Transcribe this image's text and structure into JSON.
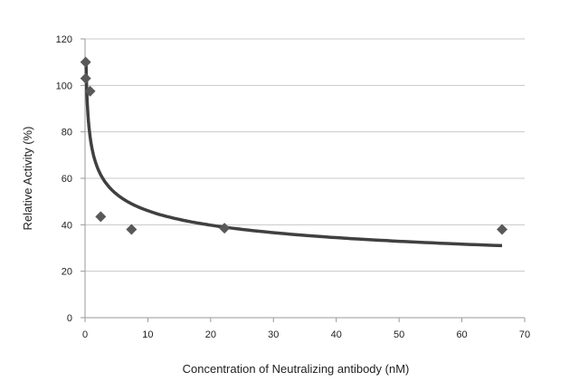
{
  "chart_data": {
    "type": "scatter",
    "title": "",
    "xlabel": "Concentration of Neutralizing antibody (nM)",
    "ylabel": "Relative Activity (%)",
    "xlim": [
      0,
      70
    ],
    "ylim": [
      0,
      120
    ],
    "xticks": [
      0,
      10,
      20,
      30,
      40,
      50,
      60,
      70
    ],
    "yticks": [
      0,
      20,
      40,
      60,
      80,
      100,
      120
    ],
    "grid": "horizontal",
    "legend": "none",
    "series": [
      {
        "marker": "diamond",
        "color": "#595959",
        "points": [
          {
            "x": 0.1,
            "y": 110
          },
          {
            "x": 0.1,
            "y": 103
          },
          {
            "x": 0.8,
            "y": 97.5
          },
          {
            "x": 2.5,
            "y": 43.5
          },
          {
            "x": 7.4,
            "y": 38
          },
          {
            "x": 22.2,
            "y": 38.5
          },
          {
            "x": 66.4,
            "y": 38
          }
        ]
      }
    ],
    "trendline": {
      "type": "power",
      "a": 74.5,
      "b": -0.209,
      "color": "#404040",
      "x_range": [
        0.15,
        66.4
      ]
    }
  }
}
